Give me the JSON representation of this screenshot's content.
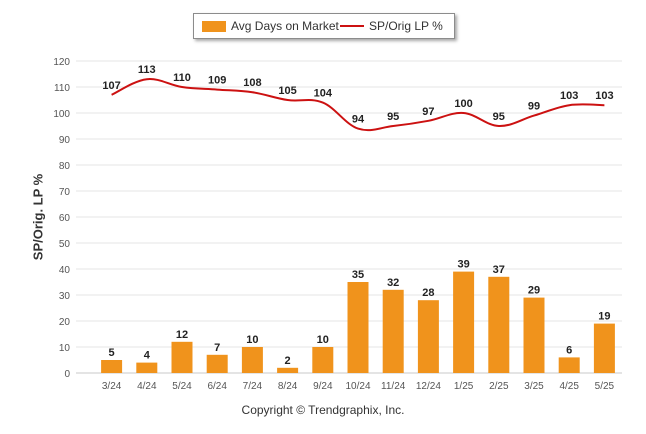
{
  "chart_data": {
    "type": "bar+line",
    "categories": [
      "3/24",
      "4/24",
      "5/24",
      "6/24",
      "7/24",
      "8/24",
      "9/24",
      "10/24",
      "11/24",
      "12/24",
      "1/25",
      "2/25",
      "3/25",
      "4/25",
      "5/25"
    ],
    "series": [
      {
        "name": "Avg Days on Market",
        "type": "bar",
        "color": "#f0931c",
        "values": [
          5,
          4,
          12,
          7,
          10,
          2,
          10,
          35,
          32,
          28,
          39,
          37,
          29,
          6,
          19
        ]
      },
      {
        "name": "SP/Orig LP %",
        "type": "line",
        "color": "#cc1111",
        "values": [
          107,
          113,
          110,
          109,
          108,
          105,
          104,
          94,
          95,
          97,
          100,
          95,
          99,
          103,
          103
        ]
      }
    ],
    "ylabel": "SP/Orig. LP %",
    "ylim": [
      0,
      120
    ],
    "yticks": [
      0,
      10,
      20,
      30,
      40,
      50,
      60,
      70,
      80,
      90,
      100,
      110,
      120
    ],
    "grid": true,
    "legend_position": "top-center"
  },
  "legend": {
    "bar_label": "Avg Days on Market",
    "line_label": "SP/Orig LP %"
  },
  "footer": {
    "copyright": "Copyright © Trendgraphix, Inc."
  }
}
